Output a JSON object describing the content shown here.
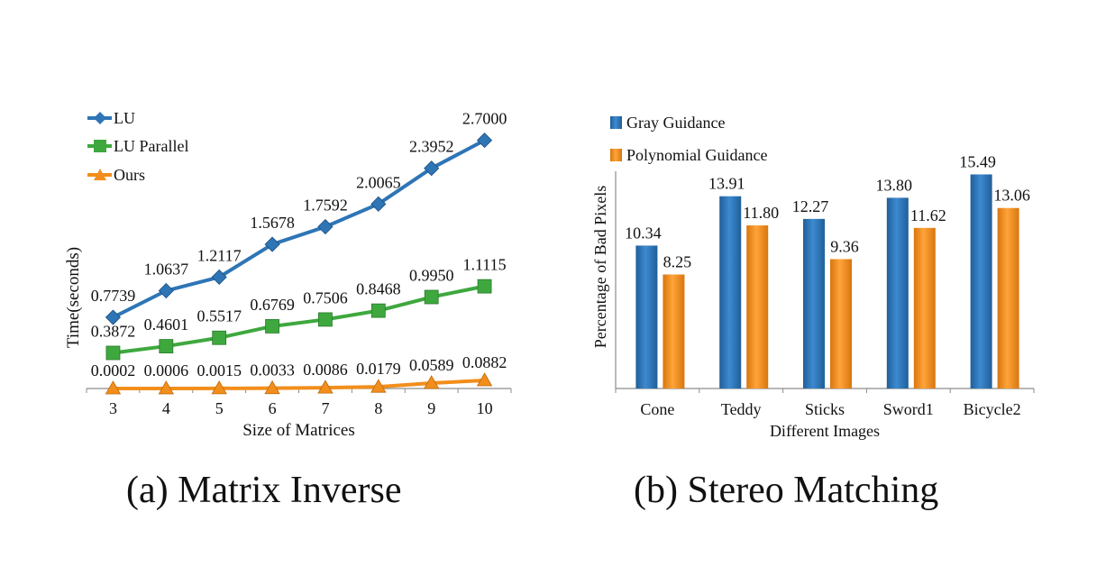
{
  "captions": {
    "a": "(a) Matrix Inverse",
    "b": "(b) Stereo Matching"
  },
  "colors": {
    "lu": "#2E75B6",
    "lu_parallel": "#3EA83E",
    "ours": "#F28E1C",
    "gray_guidance": "#2E75B6",
    "polynomial_guidance": "#F28E1C",
    "axis": "#8c8c8c"
  },
  "chart_data": [
    {
      "type": "line",
      "xlabel": "Size of Matrices",
      "ylabel": "Time(seconds)",
      "x": [
        3,
        4,
        5,
        6,
        7,
        8,
        9,
        10
      ],
      "ylim": [
        0,
        3.0
      ],
      "grid": false,
      "legend": "top-left",
      "series": [
        {
          "name": "LU",
          "marker": "diamond",
          "values": [
            0.7739,
            1.0637,
            1.2117,
            1.5678,
            1.7592,
            2.0065,
            2.3952,
            2.7
          ],
          "labels": [
            "0.7739",
            "1.0637",
            "1.2117",
            "1.5678",
            "1.7592",
            "2.0065",
            "2.3952",
            "2.7000"
          ]
        },
        {
          "name": "LU Parallel",
          "marker": "square",
          "values": [
            0.3872,
            0.4601,
            0.5517,
            0.6769,
            0.7506,
            0.8468,
            0.995,
            1.1115
          ],
          "labels": [
            "0.3872",
            "0.4601",
            "0.5517",
            "0.6769",
            "0.7506",
            "0.8468",
            "0.9950",
            "1.1115"
          ]
        },
        {
          "name": "Ours",
          "marker": "triangle",
          "values": [
            0.0002,
            0.0006,
            0.0015,
            0.0033,
            0.0086,
            0.0179,
            0.0589,
            0.0882
          ],
          "labels": [
            "0.0002",
            "0.0006",
            "0.0015",
            "0.0033",
            "0.0086",
            "0.0179",
            "0.0589",
            "0.0882"
          ]
        }
      ]
    },
    {
      "type": "bar",
      "xlabel": "Different Images",
      "ylabel": "Percentage of Bad Pixels",
      "categories": [
        "Cone",
        "Teddy",
        "Sticks",
        "Sword1",
        "Bicycle2"
      ],
      "ylim": [
        0,
        18
      ],
      "grid": false,
      "legend": "top-left",
      "series": [
        {
          "name": "Gray Guidance",
          "values": [
            10.34,
            13.91,
            12.27,
            13.8,
            15.49
          ],
          "labels": [
            "10.34",
            "13.91",
            "12.27",
            "13.80",
            "15.49"
          ]
        },
        {
          "name": "Polynomial Guidance",
          "values": [
            8.25,
            11.8,
            9.36,
            11.62,
            13.06
          ],
          "labels": [
            "8.25",
            "11.80",
            "9.36",
            "11.62",
            "13.06"
          ]
        }
      ]
    }
  ]
}
